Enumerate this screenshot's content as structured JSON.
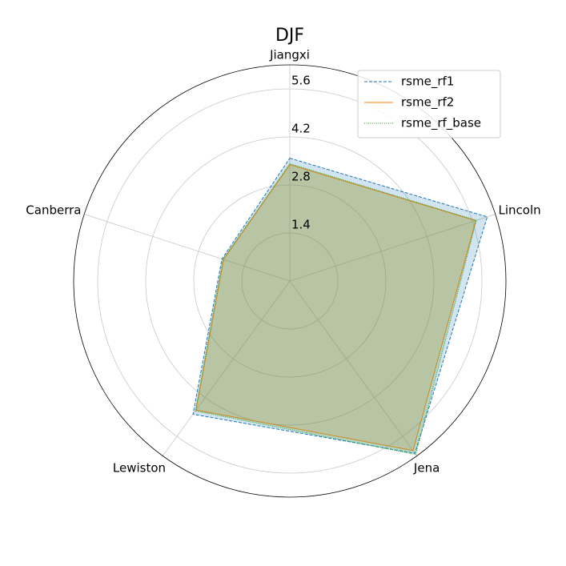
{
  "chart_data": {
    "type": "radar",
    "title": "DJF",
    "categories": [
      "Jiangxi",
      "Lincoln",
      "Jena",
      "Lewiston",
      "Canberra"
    ],
    "series": [
      {
        "name": "rsme_rf1",
        "color": "#1f77b4",
        "dash": "dashed",
        "values": [
          3.58,
          6.05,
          6.21,
          4.8,
          2.08
        ]
      },
      {
        "name": "rsme_rf2",
        "color": "#ff7f0e",
        "dash": "solid",
        "values": [
          3.39,
          5.7,
          6.11,
          4.65,
          2.03
        ]
      },
      {
        "name": "rsme_rf_base",
        "color": "#2ca02c",
        "dash": "dotted",
        "values": [
          3.42,
          5.72,
          6.25,
          4.68,
          2.05
        ]
      }
    ],
    "ylim": [
      0,
      6.3
    ],
    "yticks": [
      1.4,
      2.8,
      4.2,
      5.6
    ],
    "grid": true,
    "legend": "upper right"
  }
}
